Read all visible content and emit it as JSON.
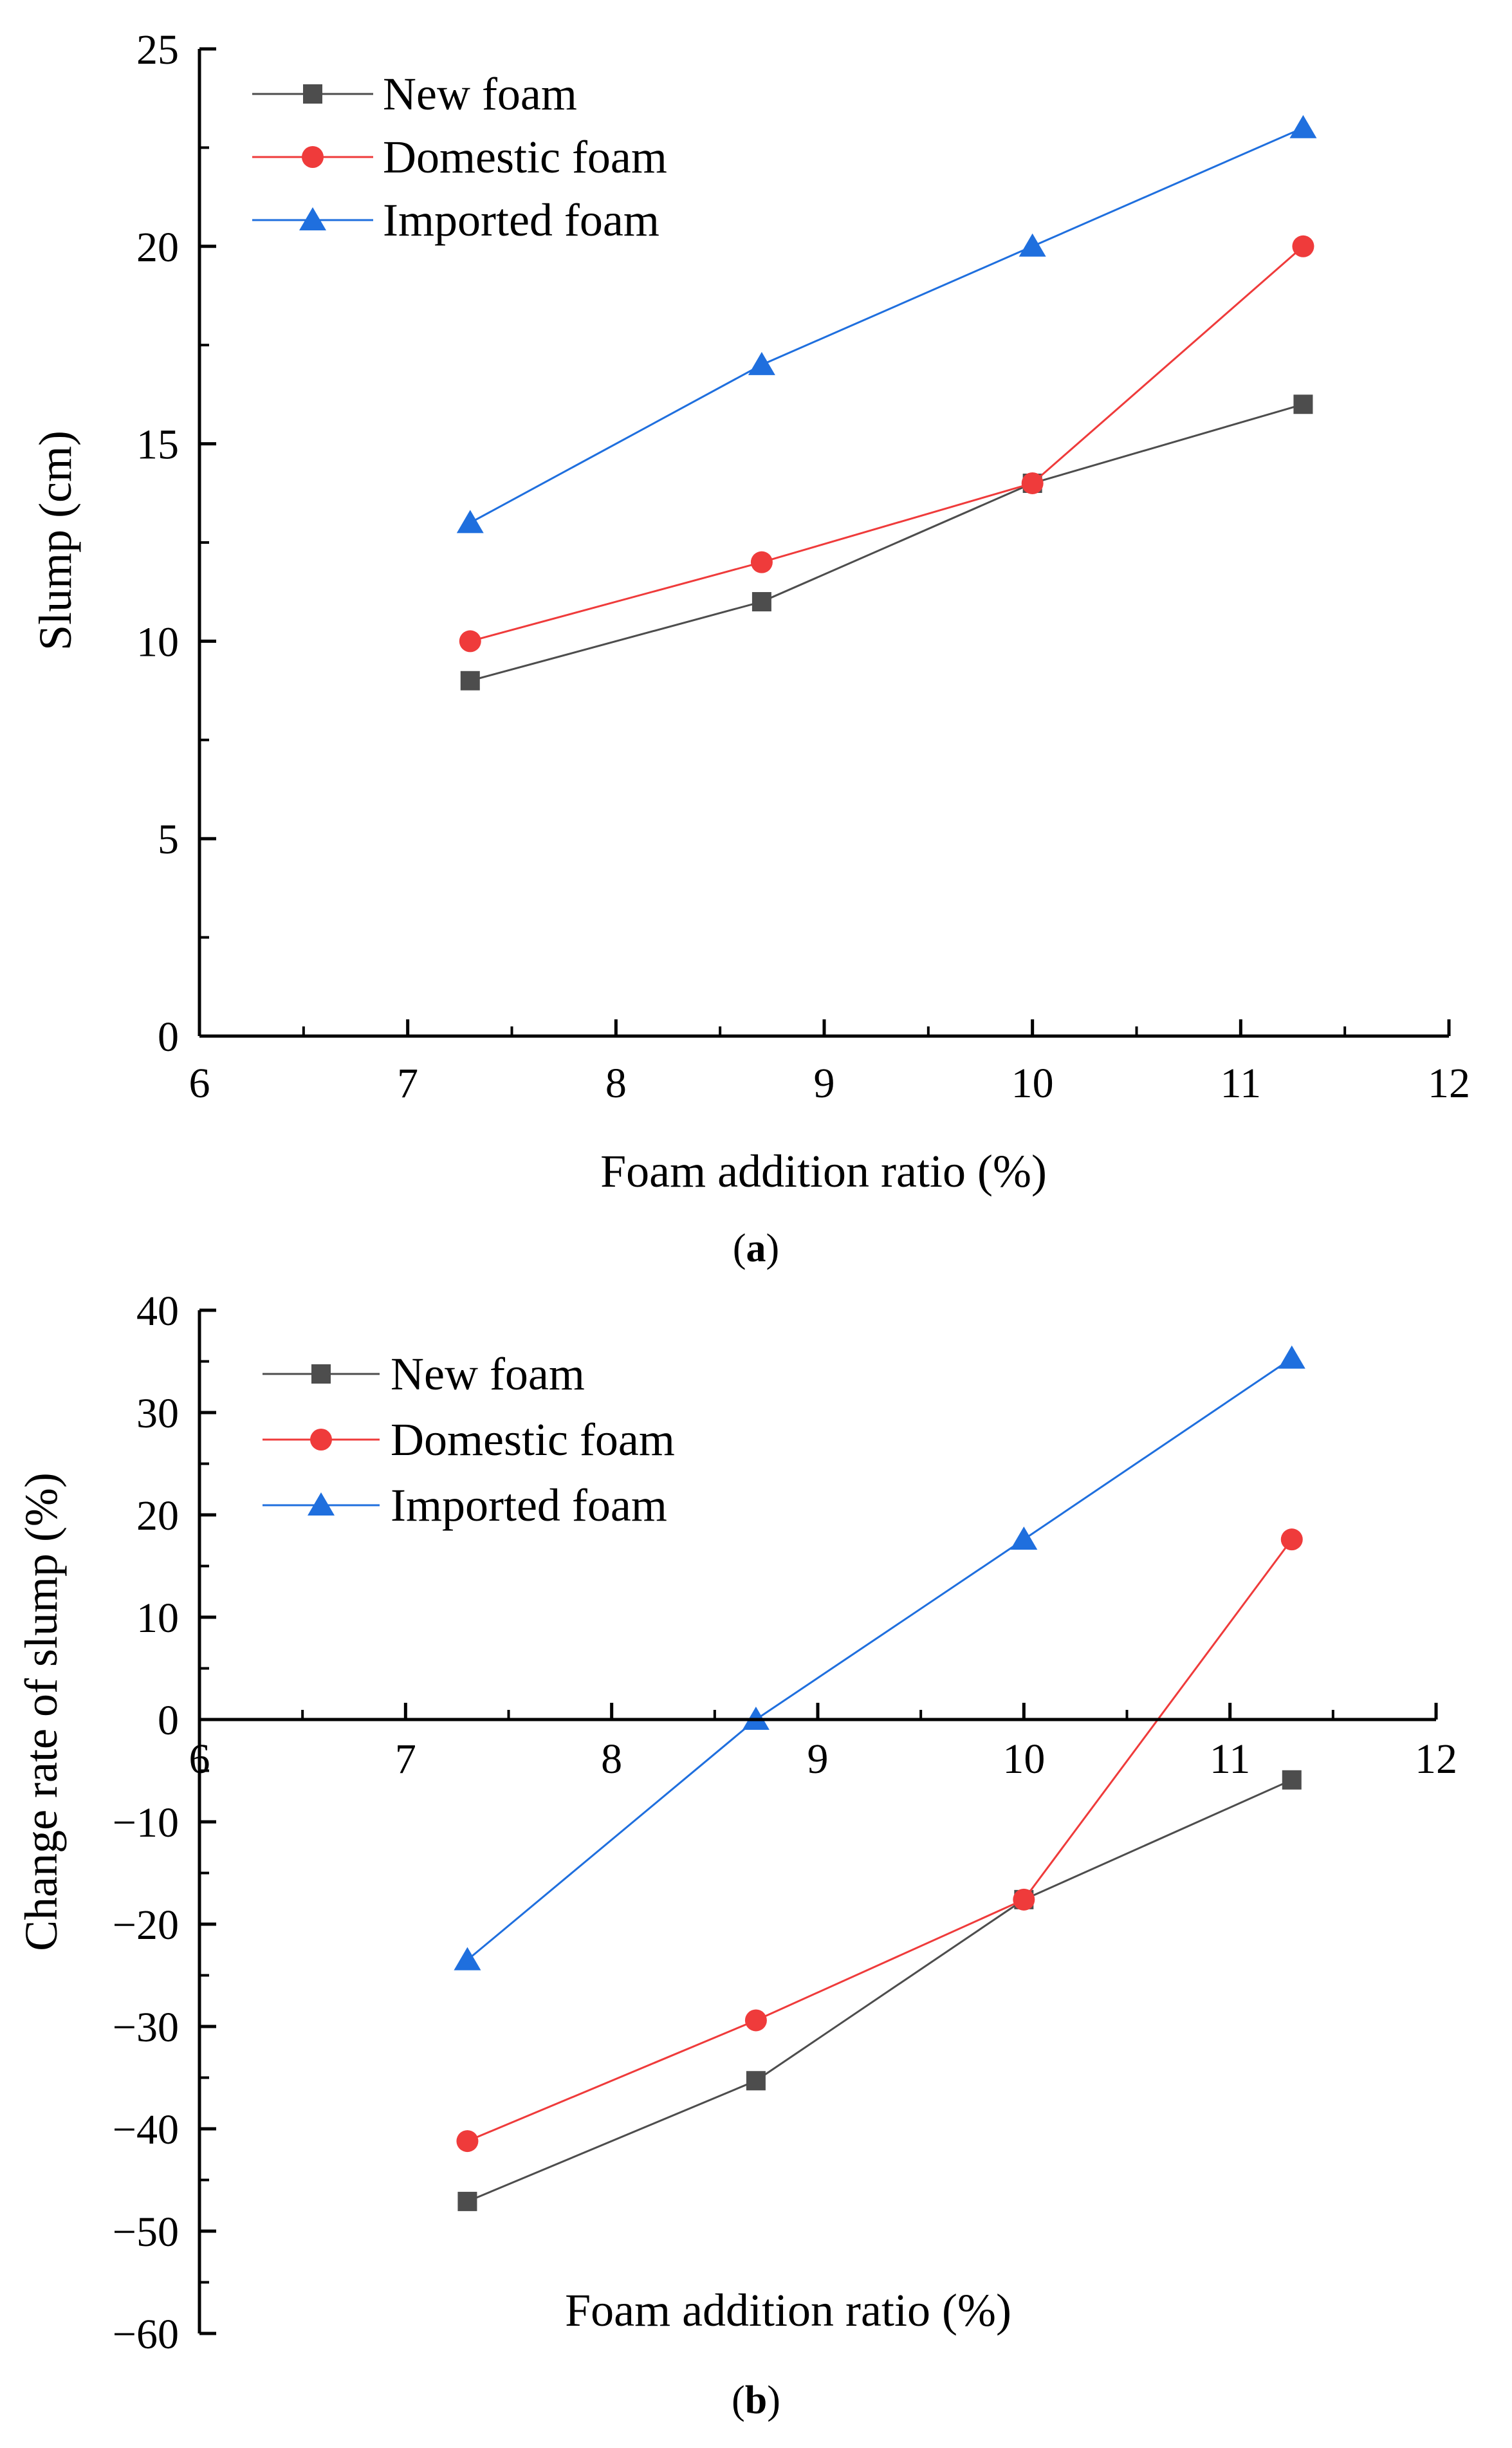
{
  "chart_data": [
    {
      "id": "a",
      "type": "line",
      "caption_label": "a",
      "xlabel": "Foam addition ratio (%)",
      "ylabel": "Slump (cm)",
      "xlim": [
        6,
        12
      ],
      "ylim": [
        0,
        25
      ],
      "x_ticks": [
        6,
        7,
        8,
        9,
        10,
        11,
        12
      ],
      "y_ticks": [
        0,
        5,
        10,
        15,
        20,
        25
      ],
      "legend_position": "top-left",
      "series": [
        {
          "name": "New foam",
          "marker": "square",
          "color": "#4d4d4d",
          "x": [
            7.3,
            8.7,
            10.0,
            11.3
          ],
          "y": [
            9,
            11,
            14,
            16
          ]
        },
        {
          "name": "Domestic foam",
          "marker": "circle",
          "color": "#ef3b3b",
          "x": [
            7.3,
            8.7,
            10.0,
            11.3
          ],
          "y": [
            10,
            12,
            14,
            20
          ]
        },
        {
          "name": "Imported foam",
          "marker": "triangle",
          "color": "#1f6fde",
          "x": [
            7.3,
            8.7,
            10.0,
            11.3
          ],
          "y": [
            13,
            17,
            20,
            23
          ]
        }
      ]
    },
    {
      "id": "b",
      "type": "line",
      "caption_label": "b",
      "xlabel": "Foam addition ratio (%)",
      "ylabel": "Change rate of slump (%)",
      "xlim": [
        6,
        12
      ],
      "ylim": [
        -60,
        40
      ],
      "x_ticks": [
        6,
        7,
        8,
        9,
        10,
        11,
        12
      ],
      "y_ticks": [
        -60,
        -50,
        -40,
        -30,
        -20,
        -10,
        0,
        10,
        20,
        30,
        40
      ],
      "x_axis_at_zero": true,
      "legend_position": "top-left",
      "series": [
        {
          "name": "New foam",
          "marker": "square",
          "color": "#4d4d4d",
          "x": [
            7.3,
            8.7,
            10.0,
            11.3
          ],
          "y": [
            -47.1,
            -35.3,
            -17.6,
            -5.9
          ]
        },
        {
          "name": "Domestic foam",
          "marker": "circle",
          "color": "#ef3b3b",
          "x": [
            7.3,
            8.7,
            10.0,
            11.3
          ],
          "y": [
            -41.2,
            -29.4,
            -17.6,
            17.6
          ]
        },
        {
          "name": "Imported foam",
          "marker": "triangle",
          "color": "#1f6fde",
          "x": [
            7.3,
            8.7,
            10.0,
            11.3
          ],
          "y": [
            -23.5,
            0,
            17.6,
            35.3
          ]
        }
      ]
    }
  ]
}
